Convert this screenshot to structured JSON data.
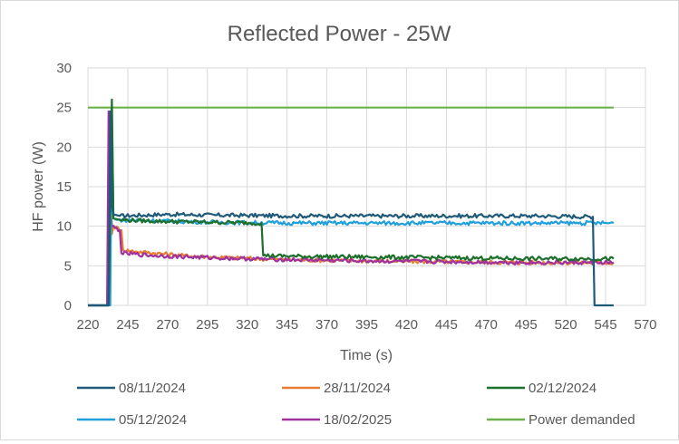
{
  "chart_data": {
    "type": "line",
    "title": "Reflected Power - 25W",
    "xlabel": "Time (s)",
    "ylabel": "HF power (W)",
    "xlim": [
      220,
      570
    ],
    "ylim": [
      0,
      30
    ],
    "x_ticks": [
      220,
      245,
      270,
      295,
      320,
      345,
      370,
      395,
      420,
      445,
      470,
      495,
      520,
      545,
      570
    ],
    "y_ticks": [
      0,
      5,
      10,
      15,
      20,
      25,
      30
    ],
    "grid": "vertical and horizontal major gridlines",
    "legend_position": "bottom",
    "series": [
      {
        "name": "08/11/2024",
        "color": "#1f5a7a",
        "points": [
          [
            220,
            0
          ],
          [
            233,
            0
          ],
          [
            234,
            24.5
          ],
          [
            235,
            12.5
          ],
          [
            236,
            11.5
          ],
          [
            240,
            11.3
          ],
          [
            270,
            11.5
          ],
          [
            300,
            11.4
          ],
          [
            350,
            11.3
          ],
          [
            400,
            11.3
          ],
          [
            450,
            11.3
          ],
          [
            500,
            11.3
          ],
          [
            537,
            11.2
          ],
          [
            538,
            0
          ],
          [
            550,
            0
          ]
        ]
      },
      {
        "name": "28/11/2024",
        "color": "#e97b34",
        "points": [
          [
            220,
            0
          ],
          [
            233,
            0
          ],
          [
            234,
            24
          ],
          [
            235,
            9
          ],
          [
            236,
            10
          ],
          [
            241,
            9.5
          ],
          [
            242,
            7
          ],
          [
            250,
            6.8
          ],
          [
            280,
            6.3
          ],
          [
            310,
            6
          ],
          [
            340,
            5.8
          ],
          [
            400,
            5.6
          ],
          [
            450,
            5.5
          ],
          [
            500,
            5.4
          ],
          [
            550,
            5.4
          ]
        ]
      },
      {
        "name": "02/12/2024",
        "color": "#1d6f2c",
        "points": [
          [
            220,
            0
          ],
          [
            233,
            0
          ],
          [
            235,
            26
          ],
          [
            236,
            11
          ],
          [
            240,
            10.8
          ],
          [
            270,
            10.6
          ],
          [
            300,
            10.5
          ],
          [
            329,
            10.4
          ],
          [
            330,
            6.3
          ],
          [
            350,
            6.2
          ],
          [
            400,
            6.1
          ],
          [
            450,
            6
          ],
          [
            500,
            5.9
          ],
          [
            550,
            5.9
          ]
        ]
      },
      {
        "name": "05/12/2024",
        "color": "#1fa0db",
        "points": [
          [
            220,
            0
          ],
          [
            234,
            0
          ],
          [
            235,
            25
          ],
          [
            236,
            11
          ],
          [
            238,
            10.8
          ],
          [
            260,
            10.7
          ],
          [
            300,
            10.5
          ],
          [
            350,
            10.4
          ],
          [
            400,
            10.4
          ],
          [
            450,
            10.4
          ],
          [
            500,
            10.4
          ],
          [
            550,
            10.4
          ]
        ]
      },
      {
        "name": "18/02/2025",
        "color": "#a0329e",
        "points": [
          [
            220,
            0
          ],
          [
            232,
            0
          ],
          [
            233,
            24.5
          ],
          [
            234,
            12
          ],
          [
            235,
            10
          ],
          [
            240,
            9.5
          ],
          [
            241,
            6.6
          ],
          [
            260,
            6.3
          ],
          [
            300,
            6
          ],
          [
            340,
            5.8
          ],
          [
            400,
            5.6
          ],
          [
            450,
            5.5
          ],
          [
            500,
            5.4
          ],
          [
            550,
            5.4
          ]
        ]
      },
      {
        "name": "Power demanded",
        "color": "#6ab04c",
        "points": [
          [
            220,
            25
          ],
          [
            550,
            25
          ]
        ]
      }
    ]
  }
}
